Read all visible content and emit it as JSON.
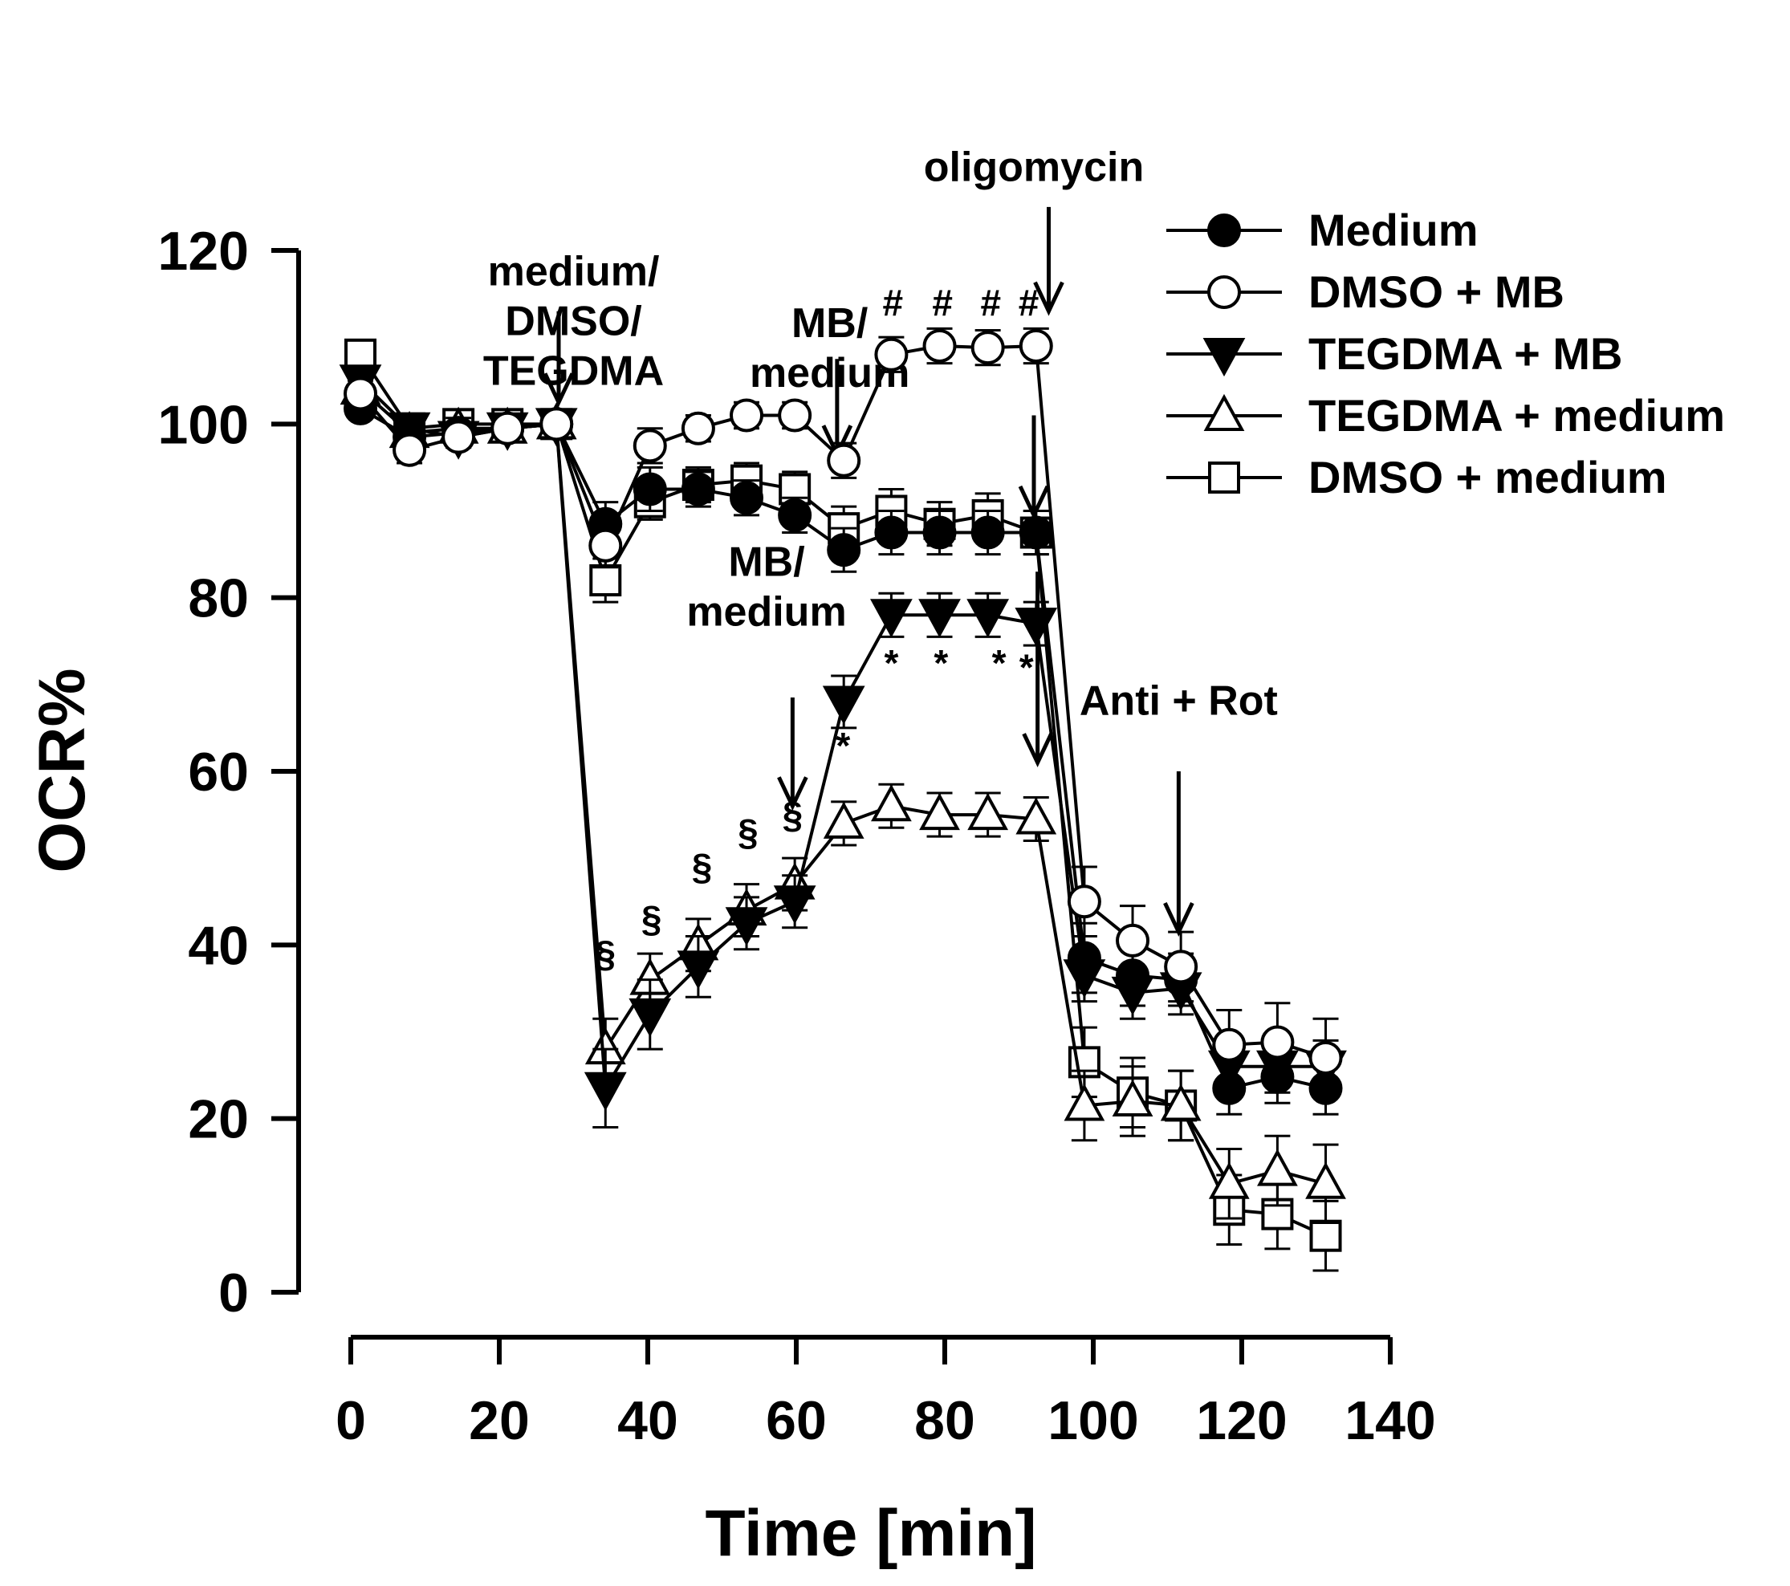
{
  "chart_data": {
    "type": "line",
    "title": "",
    "xlabel": "Time [min]",
    "ylabel": "OCR%",
    "xlim": [
      0,
      140
    ],
    "ylim": [
      0,
      120
    ],
    "xticks": [
      0,
      20,
      40,
      60,
      80,
      100,
      120,
      140
    ],
    "yticks": [
      0,
      20,
      40,
      60,
      80,
      100,
      120
    ],
    "x": [
      1.3,
      7.9,
      14.5,
      21.1,
      27.7,
      34.3,
      40.3,
      46.8,
      53.3,
      59.8,
      66.4,
      72.8,
      79.3,
      85.8,
      92.3,
      98.8,
      105.3,
      111.8,
      118.3,
      124.8,
      131.3
    ],
    "series": [
      {
        "name": "Medium",
        "marker": "filled-circle",
        "values": [
          101.8,
          98.5,
          99.0,
          99.5,
          100,
          88.5,
          92.5,
          92.5,
          91.5,
          89.5,
          85.5,
          87.5,
          87.5,
          87.5,
          87.5,
          38.5,
          36.5,
          36.0,
          23.5,
          24.8,
          23.5
        ],
        "errors": [
          1.0,
          1.5,
          1.2,
          1.0,
          0.5,
          2.5,
          2.5,
          2.0,
          2.0,
          2.0,
          2.5,
          2.5,
          2.5,
          2.5,
          2.5,
          4.0,
          3.5,
          3.0,
          3.0,
          3.0,
          3.0
        ]
      },
      {
        "name": "DMSO + MB",
        "marker": "open-circle",
        "values": [
          103.5,
          97.0,
          98.5,
          99.5,
          100,
          86.0,
          97.5,
          99.5,
          101.0,
          101.0,
          95.8,
          108.0,
          109.0,
          108.8,
          109.0,
          45.0,
          40.5,
          37.5,
          28.5,
          28.8,
          27.0
        ],
        "errors": [
          1.0,
          1.5,
          1.2,
          1.0,
          0.5,
          2.5,
          2.0,
          1.5,
          1.5,
          1.5,
          2.0,
          2.0,
          2.0,
          2.0,
          2.0,
          4.0,
          4.0,
          4.0,
          4.0,
          4.5,
          4.5
        ]
      },
      {
        "name": "TEGDMA + MB",
        "marker": "filled-triangle-down",
        "values": [
          105.0,
          99.5,
          98.5,
          99.5,
          100,
          23.5,
          32.0,
          37.5,
          42.5,
          45.0,
          68.0,
          78.0,
          78.0,
          78.0,
          77.0,
          36.5,
          34.5,
          35.0,
          26.0,
          26.0,
          26.0
        ],
        "errors": [
          1.0,
          1.5,
          1.2,
          1.0,
          0.5,
          4.5,
          4.0,
          3.5,
          3.0,
          3.0,
          3.0,
          2.5,
          2.5,
          2.5,
          2.5,
          3.0,
          3.0,
          3.0,
          3.0,
          3.0,
          3.0
        ]
      },
      {
        "name": "TEGDMA + medium",
        "marker": "open-triangle-up",
        "values": [
          104.0,
          99.0,
          99.5,
          99.5,
          100,
          28.0,
          36.0,
          40.0,
          44.0,
          47.0,
          54.0,
          56.0,
          55.0,
          55.0,
          54.5,
          21.5,
          22.0,
          21.5,
          12.5,
          14.0,
          12.5
        ],
        "errors": [
          1.0,
          1.5,
          1.2,
          1.0,
          0.5,
          3.5,
          3.0,
          3.0,
          3.0,
          3.0,
          2.5,
          2.5,
          2.5,
          2.5,
          2.5,
          4.0,
          4.0,
          4.0,
          4.0,
          4.0,
          4.5
        ]
      },
      {
        "name": "DMSO + medium",
        "marker": "open-square",
        "values": [
          108.0,
          99.5,
          100,
          100,
          100,
          82.0,
          91.0,
          93.0,
          93.5,
          92.5,
          88.0,
          90.0,
          88.5,
          89.5,
          87.5,
          26.5,
          23.0,
          21.5,
          9.5,
          9.0,
          6.5
        ],
        "errors": [
          1.0,
          1.5,
          1.2,
          1.0,
          0.5,
          2.5,
          2.0,
          2.0,
          2.0,
          2.0,
          2.5,
          2.5,
          2.5,
          2.5,
          2.5,
          4.0,
          4.0,
          4.0,
          4.0,
          4.0,
          4.0
        ]
      }
    ],
    "annotations": [
      {
        "lines": [
          "medium/",
          "DMSO/",
          "TEGDMA"
        ],
        "arrow_x": 28,
        "text_x": 30,
        "text_top": 116,
        "arrow_from": 113,
        "arrow_to": 102.5
      },
      {
        "lines": [
          "MB/",
          "medium"
        ],
        "arrow_x": 65.5,
        "text_x": 64.5,
        "text_top": 110,
        "arrow_from": 107.5,
        "arrow_to": 96.5
      },
      {
        "lines": [
          "oligomycin"
        ],
        "arrow_x": 94,
        "text_x": 92,
        "text_top": 128,
        "arrow_from": 125,
        "arrow_to": 113
      },
      {
        "lines": [
          "MB/",
          "medium"
        ],
        "arrow_x": 59.5,
        "text_x": 56,
        "text_top": 82.5,
        "arrow_from": 68.5,
        "arrow_to": 56
      },
      {
        "lines": [
          "Anti + Rot"
        ],
        "arrow_x": 111.5,
        "text_x": 111.5,
        "text_top": 66.5,
        "arrow_from": 60,
        "arrow_to": 41.5
      }
    ],
    "extra_arrows": [
      {
        "x": 92,
        "from": 101,
        "to": 89.5
      },
      {
        "x": 92.5,
        "from": 83,
        "to": 61
      }
    ],
    "significance_marks": [
      {
        "symbol": "#",
        "x": 73,
        "y": 112.5
      },
      {
        "symbol": "#",
        "x": 79.7,
        "y": 112.5
      },
      {
        "symbol": "#",
        "x": 86.2,
        "y": 112.5
      },
      {
        "symbol": "#",
        "x": 91.3,
        "y": 112.5
      },
      {
        "symbol": "*",
        "x": 72.8,
        "y": 71
      },
      {
        "symbol": "*",
        "x": 79.5,
        "y": 71
      },
      {
        "symbol": "*",
        "x": 87.3,
        "y": 71
      },
      {
        "symbol": "*",
        "x": 91.0,
        "y": 70.5
      },
      {
        "symbol": "*",
        "x": 66.3,
        "y": 61.5
      },
      {
        "symbol": "§",
        "x": 34.3,
        "y": 37.5
      },
      {
        "symbol": "§",
        "x": 40.5,
        "y": 41.5
      },
      {
        "symbol": "§",
        "x": 47.3,
        "y": 47.5
      },
      {
        "symbol": "§",
        "x": 53.5,
        "y": 51.5
      },
      {
        "symbol": "§",
        "x": 59.5,
        "y": 53.5
      }
    ],
    "legend": {
      "position": "top-right"
    }
  }
}
